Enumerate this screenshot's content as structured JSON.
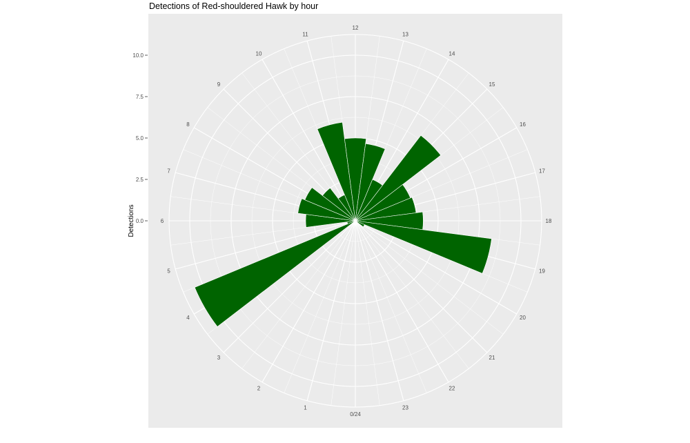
{
  "chart_data": {
    "type": "bar",
    "coordinate_system": "polar",
    "title": "Detections of Red-shouldered Hawk by hour",
    "xlabel": "",
    "ylabel": "Detections",
    "categories": [
      "0/24",
      "1",
      "2",
      "3",
      "4",
      "5",
      "6",
      "7",
      "8",
      "9",
      "10",
      "11",
      "12",
      "13",
      "14",
      "15",
      "16",
      "17",
      "18",
      "19",
      "20",
      "21",
      "22",
      "23"
    ],
    "values": [
      0,
      0,
      0,
      0,
      10.5,
      0.5,
      3.0,
      3.5,
      3.3,
      2.5,
      1.7,
      6.0,
      5.0,
      4.7,
      2.7,
      6.5,
      3.6,
      3.7,
      4.1,
      8.3,
      0.6,
      0,
      0,
      0
    ],
    "y_ticks": [
      "0.0",
      "2.5",
      "5.0",
      "7.5",
      "10.0"
    ],
    "ylim": [
      0,
      11.5
    ],
    "grid": true,
    "bar_color": "#006400",
    "panel_color": "#ebebeb",
    "grid_color": "#ffffff"
  }
}
